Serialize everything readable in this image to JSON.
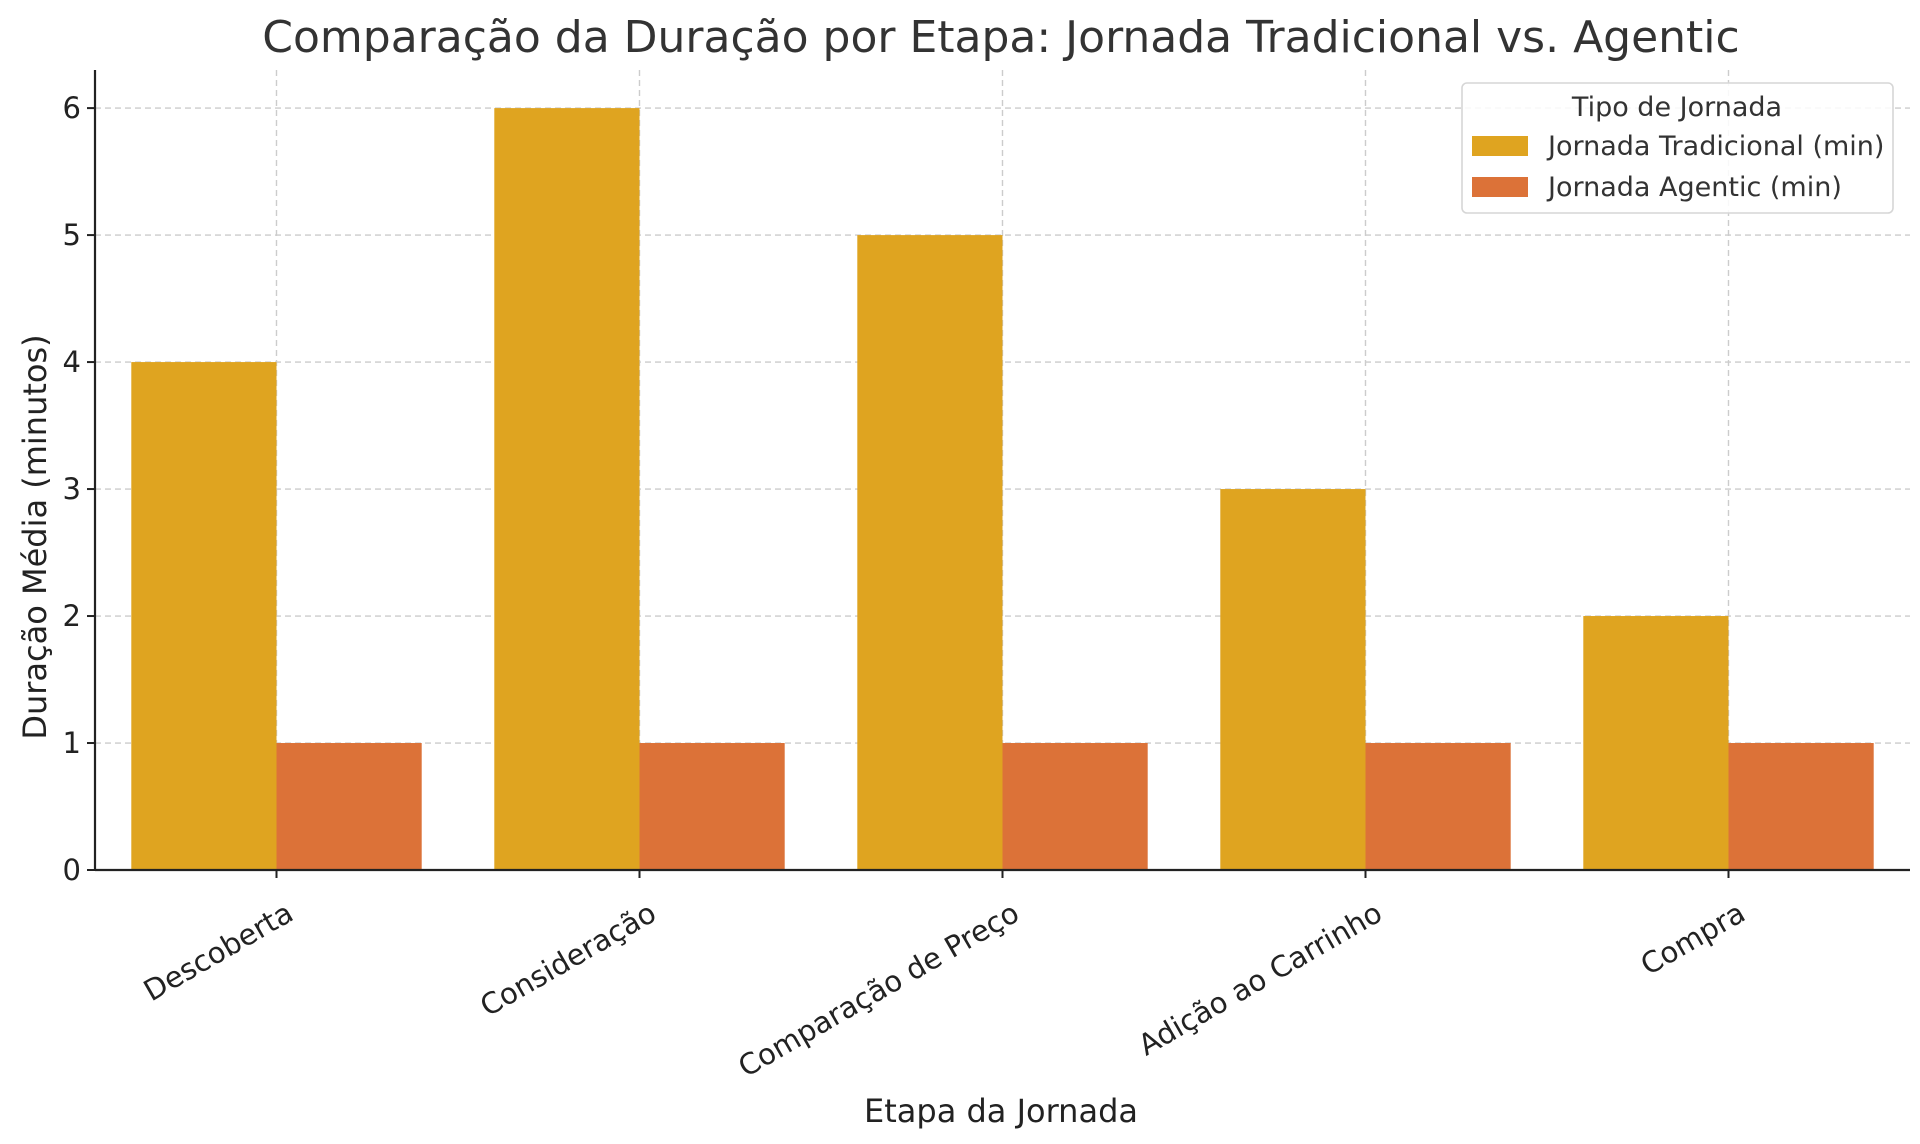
{
  "chart_data": {
    "type": "bar",
    "title": "Comparação da Duração por Etapa: Jornada Tradicional vs. Agentic",
    "xlabel": "Etapa da Jornada",
    "ylabel": "Duração Média (minutos)",
    "categories": [
      "Descoberta",
      "Consideração",
      "Comparação de Preço",
      "Adição ao Carrinho",
      "Compra"
    ],
    "series": [
      {
        "name": "Jornada Tradicional (min)",
        "values": [
          4,
          6,
          5,
          3,
          2
        ],
        "color": "#DFA420"
      },
      {
        "name": "Jornada Agentic (min)",
        "values": [
          1,
          1,
          1,
          1,
          1
        ],
        "color": "#DC7238"
      }
    ],
    "ylim": [
      0,
      6.3
    ],
    "yticks": [
      0,
      1,
      2,
      3,
      4,
      5,
      6
    ],
    "grid": true,
    "legend": {
      "title": "Tipo de Jornada",
      "placement": "top-right"
    }
  }
}
